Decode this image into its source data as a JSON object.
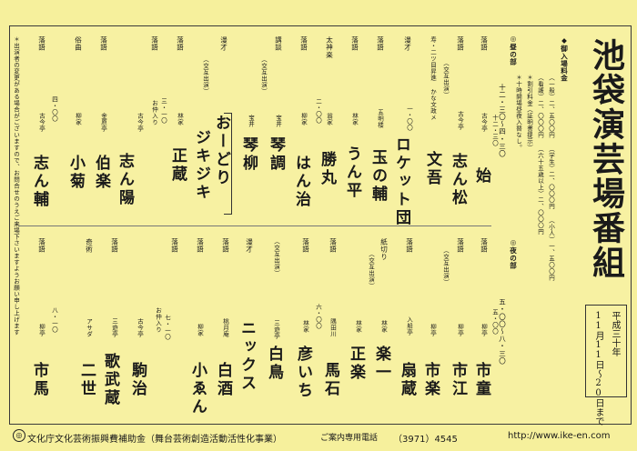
{
  "title": "池袋演芸場番組",
  "date": {
    "era": "平成三十年",
    "range": "11月11日～20日まで"
  },
  "admission": {
    "heading": "◆御入場料金",
    "line1": "（一般）二、五〇〇円 （学生）二、〇〇〇円 （小人）一、五〇〇円",
    "line2": "（看護）二、〇〇〇円 （六十五歳以上）二、〇〇〇円",
    "line3": "＊割引料金（証明書提示）",
    "line4": "＊十時開場昼夜入替なし。"
  },
  "notice": "＊出演者の変更がある場合がございますので、お問合せのうえご来場下さいますようお願い申し上げます",
  "day": {
    "label": "◎昼の部",
    "time": "十二・三〇～四・三〇",
    "start": "十二・三〇",
    "mid": "一・〇〇",
    "mid2": "二・〇〇",
    "mid3": "三・一〇",
    "mid4": "四・〇〇",
    "acts": [
      {
        "genre": "落語",
        "company": "古今亭",
        "name": "始",
        "note": ""
      },
      {
        "genre": "落語",
        "company": "古今亭",
        "name": "志ん松",
        "note": "（交互出演）"
      },
      {
        "genre": "",
        "company": "寿・二ツ目昇進 かな文政メ",
        "name": "文吾",
        "note": ""
      },
      {
        "genre": "落語",
        "company": "橘家",
        "name": "文吾",
        "note": ""
      },
      {
        "genre": "漫才",
        "company": "",
        "name": "ロケット団",
        "note": ""
      },
      {
        "genre": "落語",
        "company": "五明楼",
        "name": "玉の輔",
        "note": ""
      },
      {
        "genre": "落語",
        "company": "林家",
        "name": "うん平",
        "note": ""
      },
      {
        "genre": "太神楽",
        "company": "翁家",
        "name": "勝丸",
        "note": ""
      },
      {
        "genre": "落語",
        "company": "柳家",
        "name": "はん治",
        "note": ""
      },
      {
        "genre": "講談",
        "company": "宝井",
        "name": "琴調",
        "note": "（交互出演）"
      },
      {
        "genre": "",
        "company": "宝井",
        "name": "琴柳",
        "note": ""
      },
      {
        "genre": "漫才",
        "company": "",
        "name": "おーどり",
        "note": "（交互出演）"
      },
      {
        "genre": "",
        "company": "",
        "name": "ジキジキ",
        "note": ""
      },
      {
        "genre": "落語",
        "company": "林家",
        "name": "正蔵",
        "note": ""
      },
      {
        "genre": "落語",
        "company": "古今亭",
        "name": "志ん陽",
        "note": "お仲入り"
      },
      {
        "genre": "落語",
        "company": "金原亭",
        "name": "伯楽",
        "note": ""
      },
      {
        "genre": "俗曲",
        "company": "柳家",
        "name": "小菊",
        "note": ""
      },
      {
        "genre": "落語",
        "company": "古今亭",
        "name": "志ん輔",
        "note": ""
      }
    ]
  },
  "night": {
    "label": "◎夜の部",
    "time": "五・〇〇～八・三〇",
    "start": "五・〇〇",
    "mid": "六・〇〇",
    "mid2": "七・一〇",
    "mid3": "八・一〇",
    "acts": [
      {
        "genre": "落語",
        "company": "柳亭",
        "name": "市童",
        "note": ""
      },
      {
        "genre": "落語",
        "company": "柳亭",
        "name": "市江",
        "note": "（交互出演）"
      },
      {
        "genre": "",
        "company": "柳亭",
        "name": "市楽",
        "note": ""
      },
      {
        "genre": "落語",
        "company": "入船亭",
        "name": "扇蔵",
        "note": ""
      },
      {
        "genre": "紙切り",
        "company": "林家",
        "name": "楽一",
        "note": "（交互出演）"
      },
      {
        "genre": "",
        "company": "林家",
        "name": "正楽",
        "note": ""
      },
      {
        "genre": "落語",
        "company": "隅田川",
        "name": "馬石",
        "note": ""
      },
      {
        "genre": "落語",
        "company": "林家",
        "name": "彦いち",
        "note": "（交互出演）"
      },
      {
        "genre": "",
        "company": "三遊亭",
        "name": "白鳥",
        "note": ""
      },
      {
        "genre": "漫才",
        "company": "",
        "name": "ニックス",
        "note": ""
      },
      {
        "genre": "落語",
        "company": "桃月庵",
        "name": "白酒",
        "note": ""
      },
      {
        "genre": "落語",
        "company": "柳家",
        "name": "小ゑん",
        "note": ""
      },
      {
        "genre": "落語",
        "company": "古今亭",
        "name": "駒治",
        "note": "お仲入り"
      },
      {
        "genre": "落語",
        "company": "三遊亭",
        "name": "歌武蔵",
        "note": ""
      },
      {
        "genre": "奇術",
        "company": "アサダ",
        "name": "二世",
        "note": ""
      },
      {
        "genre": "落語",
        "company": "柳亭",
        "name": "市馬",
        "note": ""
      }
    ]
  },
  "footer": {
    "subsidy": "文化庁文化芸術振興費補助金（舞台芸術創造活動活性化事業）",
    "phone_label": "ご案内専用電話",
    "phone": "（3971）4545",
    "url": "http://www.ike-en.com"
  }
}
